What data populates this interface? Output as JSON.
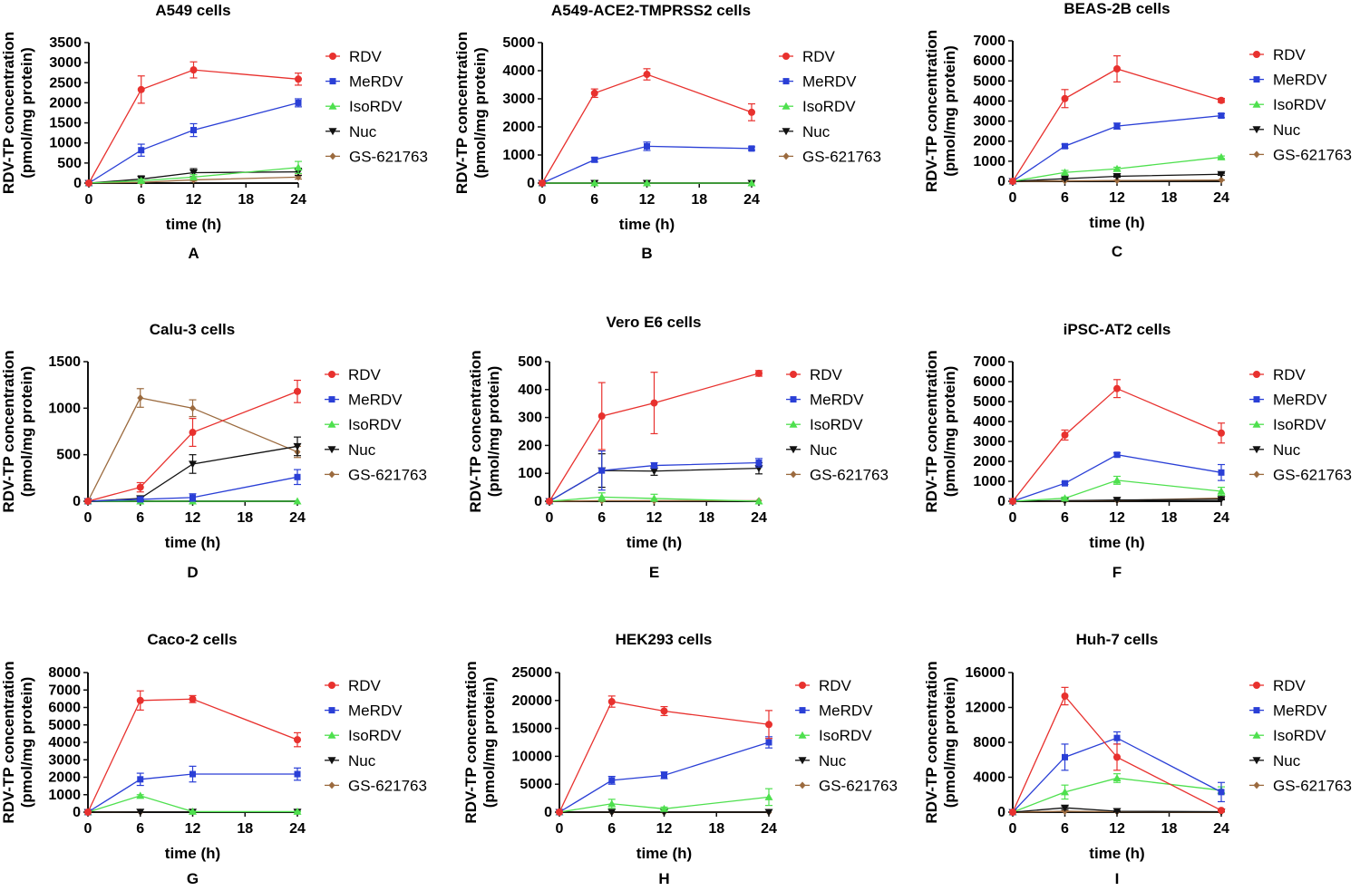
{
  "legend": [
    "RDV",
    "MeRDV",
    "IsoRDV",
    "Nuc",
    "GS-621763"
  ],
  "series_colors": [
    "#e8312e",
    "#2a3fd6",
    "#4ee04e",
    "#111111",
    "#9b6a3e"
  ],
  "chart_data": [
    {
      "type": "line",
      "panel_label": "A",
      "title": "A549 cells",
      "xlabel": "time (h)",
      "ylabel": "RDV-TP concentration",
      "ylabel2": "(pmol/mg protein)",
      "x": [
        0,
        6,
        12,
        24
      ],
      "xticks": [
        "0",
        "6",
        "12",
        "18",
        "24"
      ],
      "ylim": [
        0,
        3500
      ],
      "yticks": [
        "0",
        "500",
        "1000",
        "1500",
        "2000",
        "2500",
        "3000",
        "3500"
      ],
      "series": [
        {
          "name": "RDV",
          "values": [
            0,
            2330,
            2820,
            2590
          ],
          "err": [
            0,
            340,
            200,
            150
          ]
        },
        {
          "name": "MeRDV",
          "values": [
            0,
            820,
            1320,
            2000
          ],
          "err": [
            0,
            150,
            160,
            100
          ]
        },
        {
          "name": "IsoRDV",
          "values": [
            0,
            60,
            150,
            390
          ],
          "err": [
            0,
            40,
            60,
            150
          ]
        },
        {
          "name": "Nuc",
          "values": [
            0,
            100,
            260,
            280
          ],
          "err": [
            0,
            80,
            100,
            90
          ]
        },
        {
          "name": "GS-621763",
          "values": [
            0,
            20,
            80,
            150
          ],
          "err": [
            0,
            10,
            30,
            50
          ]
        }
      ]
    },
    {
      "type": "line",
      "panel_label": "B",
      "title": "A549-ACE2-TMPRSS2 cells",
      "xlabel": "time (h)",
      "ylabel": "RDV-TP concentration",
      "ylabel2": "(pmol/mg protein)",
      "x": [
        0,
        6,
        12,
        24
      ],
      "xticks": [
        "0",
        "6",
        "12",
        "18",
        "24"
      ],
      "ylim": [
        0,
        5000
      ],
      "yticks": [
        "0",
        "1000",
        "2000",
        "3000",
        "4000",
        "5000"
      ],
      "series": [
        {
          "name": "RDV",
          "values": [
            0,
            3200,
            3870,
            2520
          ],
          "err": [
            0,
            150,
            200,
            300
          ]
        },
        {
          "name": "MeRDV",
          "values": [
            0,
            830,
            1310,
            1230
          ],
          "err": [
            0,
            80,
            150,
            60
          ]
        },
        {
          "name": "IsoRDV",
          "values": [
            0,
            0,
            0,
            0
          ],
          "err": [
            0,
            0,
            0,
            0
          ]
        },
        {
          "name": "Nuc",
          "values": [
            0,
            0,
            0,
            0
          ],
          "err": [
            0,
            0,
            0,
            0
          ]
        },
        {
          "name": "GS-621763",
          "values": [
            0,
            0,
            0,
            0
          ],
          "err": [
            0,
            0,
            0,
            0
          ]
        }
      ]
    },
    {
      "type": "line",
      "panel_label": "C",
      "title": "BEAS-2B cells",
      "xlabel": "time (h)",
      "ylabel": "RDV-TP concentration",
      "ylabel2": "(pmol/mg protein)",
      "x": [
        0,
        6,
        12,
        24
      ],
      "xticks": [
        "0",
        "6",
        "12",
        "18",
        "24"
      ],
      "ylim": [
        0,
        7000
      ],
      "yticks": [
        "0",
        "1000",
        "2000",
        "3000",
        "4000",
        "5000",
        "6000",
        "7000"
      ],
      "series": [
        {
          "name": "RDV",
          "values": [
            0,
            4120,
            5600,
            4030
          ],
          "err": [
            0,
            450,
            650,
            100
          ]
        },
        {
          "name": "MeRDV",
          "values": [
            0,
            1750,
            2750,
            3270
          ],
          "err": [
            0,
            100,
            150,
            100
          ]
        },
        {
          "name": "IsoRDV",
          "values": [
            0,
            440,
            620,
            1200
          ],
          "err": [
            0,
            100,
            80,
            60
          ]
        },
        {
          "name": "Nuc",
          "values": [
            0,
            130,
            250,
            350
          ],
          "err": [
            0,
            40,
            50,
            50
          ]
        },
        {
          "name": "GS-621763",
          "values": [
            0,
            20,
            40,
            60
          ],
          "err": [
            0,
            10,
            10,
            10
          ]
        }
      ]
    },
    {
      "type": "line",
      "panel_label": "D",
      "title": "Calu-3 cells",
      "xlabel": "time (h)",
      "ylabel": "RDV-TP concentration",
      "ylabel2": "(pmol/mg protein)",
      "x": [
        0,
        6,
        12,
        24
      ],
      "xticks": [
        "0",
        "6",
        "12",
        "18",
        "24"
      ],
      "ylim": [
        0,
        1500
      ],
      "yticks": [
        "0",
        "500",
        "1000",
        "1500"
      ],
      "series": [
        {
          "name": "RDV",
          "values": [
            0,
            150,
            740,
            1180
          ],
          "err": [
            0,
            50,
            150,
            120
          ]
        },
        {
          "name": "MeRDV",
          "values": [
            0,
            20,
            40,
            260
          ],
          "err": [
            0,
            20,
            40,
            80
          ]
        },
        {
          "name": "IsoRDV",
          "values": [
            0,
            0,
            0,
            0
          ],
          "err": [
            0,
            0,
            0,
            0
          ]
        },
        {
          "name": "Nuc",
          "values": [
            0,
            30,
            400,
            590
          ],
          "err": [
            0,
            20,
            100,
            100
          ]
        },
        {
          "name": "GS-621763",
          "values": [
            0,
            1110,
            1000,
            530
          ],
          "err": [
            0,
            100,
            90,
            60
          ]
        }
      ]
    },
    {
      "type": "line",
      "panel_label": "E",
      "title": "Vero E6 cells",
      "xlabel": "time (h)",
      "ylabel": "RDV-TP concentration",
      "ylabel2": "(pmol/mg protein)",
      "x": [
        0,
        6,
        12,
        24
      ],
      "xticks": [
        "0",
        "6",
        "12",
        "18",
        "24"
      ],
      "ylim": [
        0,
        500
      ],
      "yticks": [
        "0",
        "100",
        "200",
        "300",
        "400",
        "500"
      ],
      "series": [
        {
          "name": "RDV",
          "values": [
            0,
            305,
            352,
            458
          ],
          "err": [
            0,
            120,
            110,
            10
          ]
        },
        {
          "name": "MeRDV",
          "values": [
            0,
            110,
            128,
            138
          ],
          "err": [
            0,
            70,
            10,
            15
          ]
        },
        {
          "name": "IsoRDV",
          "values": [
            0,
            15,
            10,
            0
          ],
          "err": [
            0,
            15,
            15,
            0
          ]
        },
        {
          "name": "Nuc",
          "values": [
            0,
            110,
            108,
            118
          ],
          "err": [
            0,
            60,
            15,
            20
          ]
        },
        {
          "name": "GS-621763",
          "values": [
            0,
            2,
            2,
            2
          ],
          "err": [
            0,
            0,
            0,
            0
          ]
        }
      ]
    },
    {
      "type": "line",
      "panel_label": "F",
      "title": "iPSC-AT2 cells",
      "xlabel": "time (h)",
      "ylabel": "RDV-TP concentration",
      "ylabel2": "(pmol/mg protein)",
      "x": [
        0,
        6,
        12,
        24
      ],
      "xticks": [
        "0",
        "6",
        "12",
        "18",
        "24"
      ],
      "ylim": [
        0,
        7000
      ],
      "yticks": [
        "0",
        "1000",
        "2000",
        "3000",
        "4000",
        "5000",
        "6000",
        "7000"
      ],
      "series": [
        {
          "name": "RDV",
          "values": [
            0,
            3320,
            5650,
            3420
          ],
          "err": [
            0,
            250,
            450,
            500
          ]
        },
        {
          "name": "MeRDV",
          "values": [
            0,
            900,
            2330,
            1440
          ],
          "err": [
            0,
            60,
            100,
            400
          ]
        },
        {
          "name": "IsoRDV",
          "values": [
            0,
            150,
            1050,
            500
          ],
          "err": [
            0,
            60,
            200,
            200
          ]
        },
        {
          "name": "Nuc",
          "values": [
            0,
            30,
            60,
            100
          ],
          "err": [
            0,
            10,
            20,
            30
          ]
        },
        {
          "name": "GS-621763",
          "values": [
            0,
            20,
            40,
            160
          ],
          "err": [
            0,
            10,
            10,
            40
          ]
        }
      ]
    },
    {
      "type": "line",
      "panel_label": "G",
      "title": "Caco-2 cells",
      "xlabel": "time (h)",
      "ylabel": "RDV-TP concentration",
      "ylabel2": "(pmol/mg protein)",
      "x": [
        0,
        6,
        12,
        24
      ],
      "xticks": [
        "0",
        "6",
        "12",
        "18",
        "24"
      ],
      "ylim": [
        0,
        8000
      ],
      "yticks": [
        "0",
        "1000",
        "2000",
        "3000",
        "4000",
        "5000",
        "6000",
        "7000",
        "8000"
      ],
      "series": [
        {
          "name": "RDV",
          "values": [
            0,
            6400,
            6480,
            4150
          ],
          "err": [
            0,
            550,
            200,
            400
          ]
        },
        {
          "name": "MeRDV",
          "values": [
            0,
            1880,
            2180,
            2180
          ],
          "err": [
            0,
            350,
            450,
            350
          ]
        },
        {
          "name": "IsoRDV",
          "values": [
            0,
            940,
            30,
            30
          ],
          "err": [
            0,
            60,
            20,
            20
          ]
        },
        {
          "name": "Nuc",
          "values": [
            0,
            10,
            10,
            10
          ],
          "err": [
            0,
            0,
            0,
            0
          ]
        },
        {
          "name": "GS-621763",
          "values": [
            0,
            5,
            5,
            5
          ],
          "err": [
            0,
            0,
            0,
            0
          ]
        }
      ]
    },
    {
      "type": "line",
      "panel_label": "H",
      "title": "HEK293 cells",
      "xlabel": "time (h)",
      "ylabel": "RDV-TP concentration",
      "ylabel2": "(pmol/mg protein)",
      "x": [
        0,
        6,
        12,
        24
      ],
      "xticks": [
        "0",
        "6",
        "12",
        "18",
        "24"
      ],
      "ylim": [
        0,
        25000
      ],
      "yticks": [
        "0",
        "5000",
        "10000",
        "15000",
        "20000",
        "25000"
      ],
      "series": [
        {
          "name": "RDV",
          "values": [
            0,
            19800,
            18100,
            15700
          ],
          "err": [
            0,
            1000,
            800,
            2500
          ]
        },
        {
          "name": "MeRDV",
          "values": [
            0,
            5700,
            6600,
            12500
          ],
          "err": [
            0,
            700,
            600,
            1000
          ]
        },
        {
          "name": "IsoRDV",
          "values": [
            0,
            1500,
            600,
            2700
          ],
          "err": [
            0,
            800,
            300,
            1500
          ]
        },
        {
          "name": "Nuc",
          "values": [
            0,
            0,
            0,
            0
          ],
          "err": [
            0,
            0,
            0,
            0
          ]
        },
        {
          "name": "GS-621763",
          "values": [
            0,
            0,
            0,
            0
          ],
          "err": [
            0,
            0,
            0,
            0
          ]
        }
      ]
    },
    {
      "type": "line",
      "panel_label": "I",
      "title": "Huh-7 cells",
      "xlabel": "time (h)",
      "ylabel": "RDV-TP concentration",
      "ylabel2": "(pmol/mg protein)",
      "x": [
        0,
        6,
        12,
        24
      ],
      "xticks": [
        "0",
        "6",
        "12",
        "18",
        "24"
      ],
      "ylim": [
        0,
        16000
      ],
      "yticks": [
        "0",
        "4000",
        "8000",
        "12000",
        "16000"
      ],
      "series": [
        {
          "name": "RDV",
          "values": [
            0,
            13300,
            6300,
            200
          ],
          "err": [
            0,
            1000,
            1500,
            100
          ]
        },
        {
          "name": "MeRDV",
          "values": [
            0,
            6300,
            8500,
            2300
          ],
          "err": [
            0,
            1500,
            700,
            1100
          ]
        },
        {
          "name": "IsoRDV",
          "values": [
            0,
            2300,
            3900,
            2500
          ],
          "err": [
            0,
            800,
            500,
            400
          ]
        },
        {
          "name": "Nuc",
          "values": [
            0,
            500,
            100,
            50
          ],
          "err": [
            0,
            200,
            50,
            20
          ]
        },
        {
          "name": "GS-621763",
          "values": [
            0,
            100,
            50,
            20
          ],
          "err": [
            0,
            50,
            20,
            10
          ]
        }
      ]
    }
  ]
}
